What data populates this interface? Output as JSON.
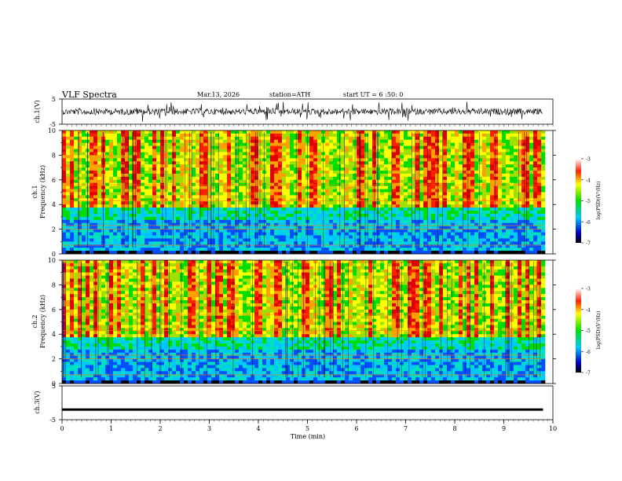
{
  "header": {
    "title": "VLF  Spectra",
    "date": "Mar.13, 2026",
    "station": "station=ATH",
    "start": "start  UT  =   6  :50: 0"
  },
  "chart_data": [
    {
      "type": "line",
      "panel": "ch1-waveform",
      "ylabel": "ch.1(V)",
      "ylim": [
        -5,
        5
      ],
      "yticks": [
        5,
        -5
      ],
      "xlim": [
        0,
        10
      ]
    },
    {
      "type": "heatmap",
      "panel": "ch1-spectrogram",
      "ylabel_line1": "ch.1",
      "ylabel_line2": "Frequency (kHz)",
      "ylim": [
        0,
        10
      ],
      "yticks": [
        0,
        2,
        4,
        6,
        8,
        10
      ],
      "xlim": [
        0,
        10
      ],
      "colorbar": {
        "label": "log(PSD)(V²/Hz)",
        "range": [
          -7,
          -3
        ],
        "ticks": [
          -3,
          -4,
          -5,
          -6,
          -7
        ]
      }
    },
    {
      "type": "heatmap",
      "panel": "ch2-spectrogram",
      "ylabel_line1": "ch.2",
      "ylabel_line2": "Frequency (kHz)",
      "ylim": [
        0,
        10
      ],
      "yticks": [
        0,
        2,
        4,
        6,
        8,
        10
      ],
      "xlim": [
        0,
        10
      ],
      "colorbar": {
        "label": "log(PSD)(V²/Hz)",
        "range": [
          -7,
          -3
        ],
        "ticks": [
          -3,
          -4,
          -5,
          -6,
          -7
        ]
      }
    },
    {
      "type": "line",
      "panel": "ch3-waveform",
      "ylabel": "ch.3(V)",
      "ylim": [
        -5,
        5
      ],
      "yticks": [
        5,
        -5
      ],
      "x": [
        0,
        9.8
      ],
      "y": [
        -2,
        -2
      ],
      "xlim": [
        0,
        10
      ],
      "xlabel": "Time (min)",
      "xticks": [
        0,
        1,
        2,
        3,
        4,
        5,
        6,
        7,
        8,
        9,
        10
      ]
    }
  ]
}
